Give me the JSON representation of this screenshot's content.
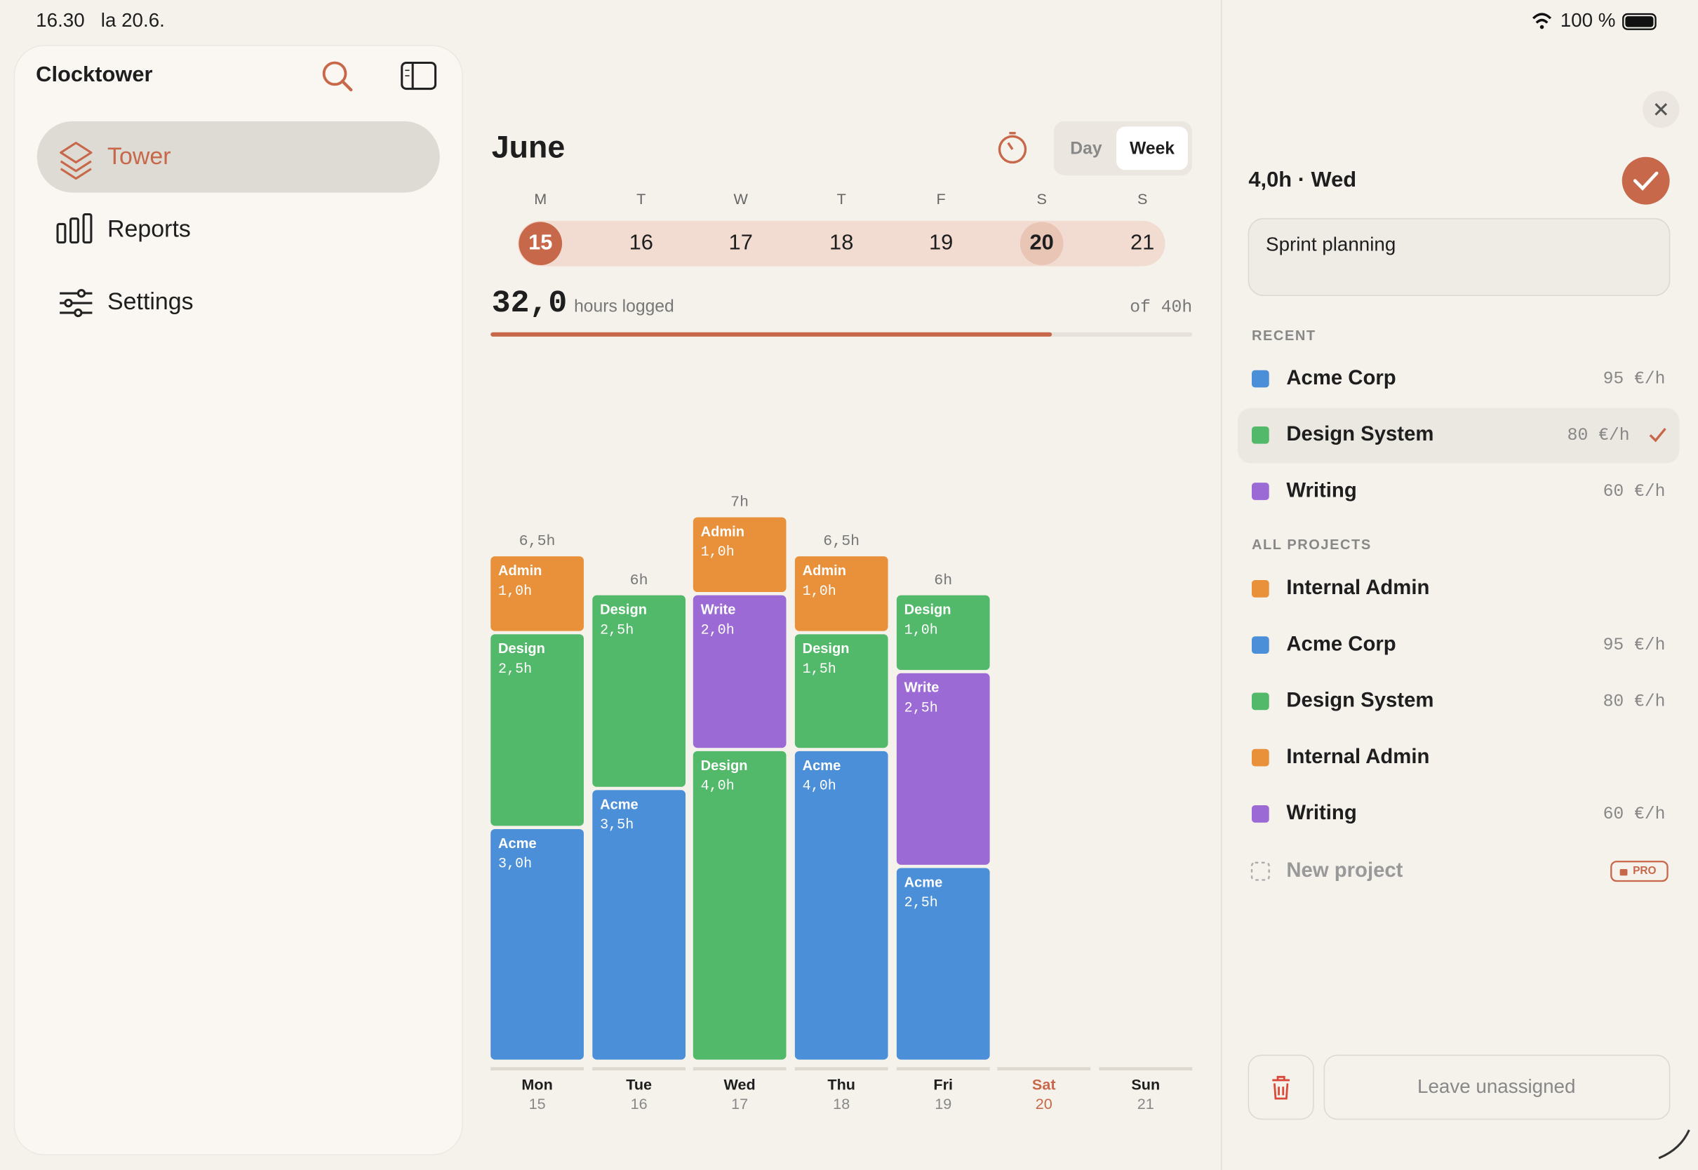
{
  "status": {
    "time": "16.30",
    "date": "la 20.6.",
    "battery": "100 %"
  },
  "sidebar": {
    "title": "Clocktower",
    "nav": [
      "Tower",
      "Reports",
      "Settings"
    ]
  },
  "main": {
    "month": "June",
    "modes": [
      "Day",
      "Week"
    ],
    "week": {
      "letters": [
        "M",
        "T",
        "W",
        "T",
        "F",
        "S",
        "S"
      ],
      "dates": [
        "15",
        "16",
        "17",
        "18",
        "19",
        "20",
        "21"
      ]
    },
    "summary": {
      "logged": "32,0",
      "unit": "hours logged",
      "target": "of 40h",
      "progress": {
        "value": 32,
        "max": 40
      }
    },
    "days": [
      {
        "name": "Mon",
        "date": "15",
        "total": "6,5h",
        "segments": [
          {
            "project": "Acme",
            "hours": 3.0,
            "label": "3,0h",
            "color": "#4a8fd8"
          },
          {
            "project": "Design",
            "hours": 2.5,
            "label": "2,5h",
            "color": "#52b96a"
          },
          {
            "project": "Admin",
            "hours": 1.0,
            "label": "1,0h",
            "color": "#e8913a"
          }
        ]
      },
      {
        "name": "Tue",
        "date": "16",
        "total": "6h",
        "segments": [
          {
            "project": "Acme",
            "hours": 3.5,
            "label": "3,5h",
            "color": "#4a8fd8"
          },
          {
            "project": "Design",
            "hours": 2.5,
            "label": "2,5h",
            "color": "#52b96a"
          }
        ]
      },
      {
        "name": "Wed",
        "date": "17",
        "total": "7h",
        "segments": [
          {
            "project": "Design",
            "hours": 4.0,
            "label": "4,0h",
            "color": "#52b96a"
          },
          {
            "project": "Write",
            "hours": 2.0,
            "label": "2,0h",
            "color": "#9b6ad4"
          },
          {
            "project": "Admin",
            "hours": 1.0,
            "label": "1,0h",
            "color": "#e8913a"
          }
        ]
      },
      {
        "name": "Thu",
        "date": "18",
        "total": "6,5h",
        "segments": [
          {
            "project": "Acme",
            "hours": 4.0,
            "label": "4,0h",
            "color": "#4a8fd8"
          },
          {
            "project": "Design",
            "hours": 1.5,
            "label": "1,5h",
            "color": "#52b96a"
          },
          {
            "project": "Admin",
            "hours": 1.0,
            "label": "1,0h",
            "color": "#e8913a"
          }
        ]
      },
      {
        "name": "Fri",
        "date": "19",
        "total": "6h",
        "segments": [
          {
            "project": "Acme",
            "hours": 2.5,
            "label": "2,5h",
            "color": "#4a8fd8"
          },
          {
            "project": "Write",
            "hours": 2.5,
            "label": "2,5h",
            "color": "#9b6ad4"
          },
          {
            "project": "Design",
            "hours": 1.0,
            "label": "1,0h",
            "color": "#52b96a"
          }
        ]
      },
      {
        "name": "Sat",
        "date": "20",
        "segments": []
      },
      {
        "name": "Sun",
        "date": "21",
        "segments": []
      }
    ]
  },
  "panel": {
    "entry": "4,0h · Wed",
    "note": "Sprint planning",
    "recent_heading": "RECENT",
    "recent": [
      {
        "name": "Acme Corp",
        "color": "#4a8fd8",
        "rate": "95 €/h"
      },
      {
        "name": "Design System",
        "color": "#52b96a",
        "rate": "80 €/h",
        "selected": true
      },
      {
        "name": "Writing",
        "color": "#9b6ad4",
        "rate": "60 €/h"
      }
    ],
    "all_heading": "ALL PROJECTS",
    "projects": [
      {
        "name": "Internal Admin",
        "color": "#e8913a"
      },
      {
        "name": "Acme Corp",
        "color": "#4a8fd8",
        "rate": "95 €/h"
      },
      {
        "name": "Design System",
        "color": "#52b96a",
        "rate": "80 €/h"
      },
      {
        "name": "Internal Admin",
        "color": "#e8913a"
      },
      {
        "name": "Writing",
        "color": "#9b6ad4",
        "rate": "60 €/h"
      }
    ],
    "new_project": "New project",
    "badge": "PRO",
    "leave": "Leave unassigned"
  }
}
